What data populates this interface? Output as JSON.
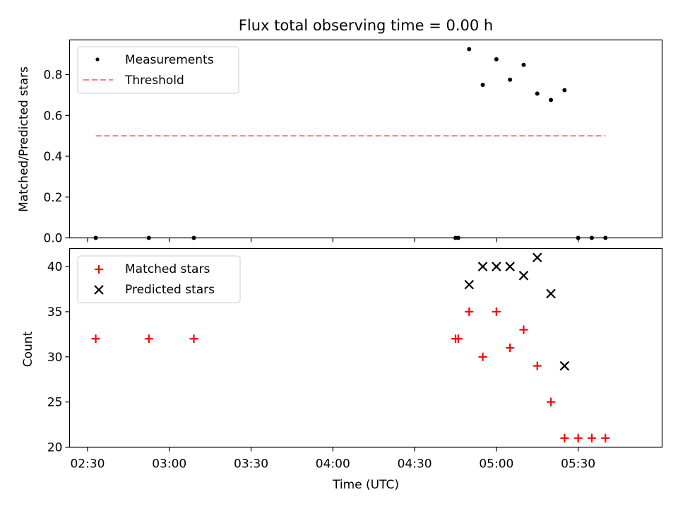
{
  "chart_data": {
    "title": "Flux total observing time = 0.00 h",
    "xlabel": "Time (UTC)",
    "x_ticks": [
      {
        "minutes": 150,
        "label": "02:30"
      },
      {
        "minutes": 180,
        "label": "03:00"
      },
      {
        "minutes": 210,
        "label": "03:30"
      },
      {
        "minutes": 240,
        "label": "04:00"
      },
      {
        "minutes": 270,
        "label": "04:30"
      },
      {
        "minutes": 300,
        "label": "05:00"
      },
      {
        "minutes": 330,
        "label": "05:30"
      }
    ],
    "xlim_minutes": [
      143.4,
      360.8
    ],
    "top": {
      "type": "scatter",
      "ylabel": "Matched/Predicted stars",
      "ylim": [
        0,
        0.97
      ],
      "y_ticks": [
        {
          "value": 0.0,
          "label": "0.0"
        },
        {
          "value": 0.2,
          "label": "0.2"
        },
        {
          "value": 0.4,
          "label": "0.4"
        },
        {
          "value": 0.6,
          "label": "0.6"
        },
        {
          "value": 0.8,
          "label": "0.8"
        }
      ],
      "measurements": {
        "name": "Measurements",
        "color": "#000000",
        "points": [
          {
            "t": 153.0,
            "y": 0.0
          },
          {
            "t": 172.5,
            "y": 0.0
          },
          {
            "t": 189.0,
            "y": 0.0
          },
          {
            "t": 285.0,
            "y": 0.0
          },
          {
            "t": 286.0,
            "y": 0.0
          },
          {
            "t": 290.0,
            "y": 0.925
          },
          {
            "t": 295.0,
            "y": 0.75
          },
          {
            "t": 300.0,
            "y": 0.875
          },
          {
            "t": 305.0,
            "y": 0.775
          },
          {
            "t": 310.0,
            "y": 0.848
          },
          {
            "t": 315.0,
            "y": 0.707
          },
          {
            "t": 320.0,
            "y": 0.676
          },
          {
            "t": 325.0,
            "y": 0.724
          },
          {
            "t": 330.0,
            "y": 0.0
          },
          {
            "t": 335.0,
            "y": 0.0
          },
          {
            "t": 340.0,
            "y": 0.0
          }
        ]
      },
      "threshold": {
        "name": "Threshold",
        "color": "#ff7f7f",
        "value": 0.5,
        "t_start": 153.0,
        "t_end": 340.0
      }
    },
    "bottom": {
      "type": "scatter",
      "ylabel": "Count",
      "ylim": [
        20,
        42
      ],
      "y_ticks": [
        {
          "value": 20,
          "label": "20"
        },
        {
          "value": 25,
          "label": "25"
        },
        {
          "value": 30,
          "label": "30"
        },
        {
          "value": 35,
          "label": "35"
        },
        {
          "value": 40,
          "label": "40"
        }
      ],
      "matched": {
        "name": "Matched stars",
        "color": "#ff0000",
        "points": [
          {
            "t": 153.0,
            "y": 32
          },
          {
            "t": 172.5,
            "y": 32
          },
          {
            "t": 189.0,
            "y": 32
          },
          {
            "t": 285.0,
            "y": 32
          },
          {
            "t": 286.0,
            "y": 32
          },
          {
            "t": 290.0,
            "y": 35
          },
          {
            "t": 295.0,
            "y": 30
          },
          {
            "t": 300.0,
            "y": 35
          },
          {
            "t": 305.0,
            "y": 31
          },
          {
            "t": 310.0,
            "y": 33
          },
          {
            "t": 315.0,
            "y": 29
          },
          {
            "t": 320.0,
            "y": 25
          },
          {
            "t": 325.0,
            "y": 21
          },
          {
            "t": 330.0,
            "y": 21
          },
          {
            "t": 335.0,
            "y": 21
          },
          {
            "t": 340.0,
            "y": 21
          }
        ]
      },
      "predicted": {
        "name": "Predicted stars",
        "color": "#000000",
        "points": [
          {
            "t": 290.0,
            "y": 38
          },
          {
            "t": 295.0,
            "y": 40
          },
          {
            "t": 300.0,
            "y": 40
          },
          {
            "t": 305.0,
            "y": 40
          },
          {
            "t": 310.0,
            "y": 39
          },
          {
            "t": 315.0,
            "y": 41
          },
          {
            "t": 320.0,
            "y": 37
          },
          {
            "t": 325.0,
            "y": 29
          }
        ]
      }
    }
  }
}
